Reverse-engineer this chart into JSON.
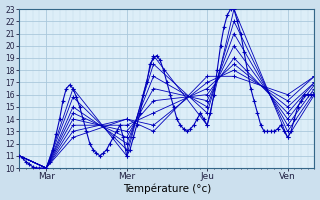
{
  "xlabel": "Température (°c)",
  "bg_color": "#cce0ee",
  "plot_bg_color": "#ddeef8",
  "grid_major_color": "#aac8dc",
  "grid_minor_color": "#c0d8e8",
  "line_color": "#0000bb",
  "marker": "+",
  "ylim": [
    10,
    23
  ],
  "xlim": [
    0,
    264
  ],
  "y_ticks": [
    10,
    11,
    12,
    13,
    14,
    15,
    16,
    17,
    18,
    19,
    20,
    21,
    22,
    23
  ],
  "x_ticks_major": [
    0,
    24,
    96,
    168,
    240
  ],
  "x_tick_labels": [
    "",
    "Mar",
    "Mer",
    "Jeu",
    "Ven"
  ],
  "figsize": [
    3.2,
    2.0
  ],
  "dpi": 100,
  "detailed_series": [
    0,
    11.0,
    3,
    10.8,
    6,
    10.5,
    9,
    10.3,
    12,
    10.1,
    15,
    10.0,
    18,
    10.0,
    21,
    10.0,
    24,
    10.0,
    27,
    10.5,
    30,
    11.5,
    33,
    12.8,
    36,
    14.0,
    39,
    15.5,
    42,
    16.5,
    45,
    16.8,
    48,
    16.5,
    51,
    15.8,
    54,
    15.0,
    57,
    14.0,
    60,
    13.0,
    63,
    12.0,
    66,
    11.5,
    69,
    11.2,
    72,
    11.0,
    75,
    11.2,
    78,
    11.5,
    81,
    12.0,
    84,
    12.5,
    87,
    13.0,
    90,
    13.5,
    93,
    12.5,
    96,
    11.0,
    99,
    11.5,
    102,
    12.5,
    105,
    13.5,
    108,
    14.5,
    111,
    16.0,
    114,
    17.0,
    117,
    18.5,
    120,
    19.0,
    123,
    19.2,
    126,
    18.8,
    129,
    18.0,
    132,
    17.0,
    135,
    16.0,
    138,
    15.0,
    141,
    14.0,
    144,
    13.5,
    147,
    13.2,
    150,
    13.0,
    153,
    13.2,
    156,
    13.5,
    159,
    14.0,
    162,
    14.5,
    165,
    14.0,
    168,
    13.5,
    171,
    14.5,
    174,
    16.0,
    177,
    18.0,
    180,
    20.0,
    183,
    21.5,
    186,
    22.5,
    189,
    23.0,
    192,
    23.0,
    195,
    22.0,
    198,
    21.0,
    201,
    19.5,
    204,
    18.0,
    207,
    16.5,
    210,
    15.5,
    213,
    14.5,
    216,
    13.5,
    219,
    13.0,
    222,
    13.0,
    225,
    13.0,
    228,
    13.0,
    231,
    13.2,
    234,
    13.5,
    237,
    13.0,
    240,
    12.5,
    243,
    13.0,
    246,
    14.0,
    249,
    15.0,
    252,
    15.5,
    255,
    16.0,
    258,
    16.0,
    261,
    16.0,
    264,
    16.0
  ],
  "fan_series": [
    [
      0,
      11.0,
      24,
      10.0,
      48,
      16.5,
      96,
      11.0,
      120,
      19.2,
      168,
      13.5,
      192,
      23.0,
      240,
      12.5,
      264,
      16.0
    ],
    [
      0,
      11.0,
      24,
      10.0,
      48,
      15.8,
      96,
      11.5,
      120,
      18.5,
      168,
      14.5,
      192,
      22.0,
      240,
      13.0,
      264,
      16.2
    ],
    [
      0,
      11.0,
      24,
      10.0,
      48,
      15.0,
      96,
      12.0,
      120,
      17.5,
      168,
      15.0,
      192,
      21.0,
      240,
      13.5,
      264,
      16.5
    ],
    [
      0,
      11.0,
      24,
      10.0,
      48,
      14.5,
      96,
      12.5,
      120,
      16.5,
      168,
      15.5,
      192,
      20.0,
      240,
      14.0,
      264,
      16.8
    ],
    [
      0,
      11.0,
      24,
      10.0,
      48,
      14.0,
      96,
      13.0,
      120,
      15.5,
      168,
      16.0,
      192,
      19.0,
      240,
      14.5,
      264,
      17.0
    ],
    [
      0,
      11.0,
      24,
      10.0,
      48,
      13.5,
      96,
      13.5,
      120,
      14.5,
      168,
      16.5,
      192,
      18.5,
      240,
      15.0,
      264,
      17.0
    ],
    [
      0,
      11.0,
      24,
      10.0,
      48,
      13.0,
      96,
      14.0,
      120,
      13.5,
      168,
      17.0,
      192,
      18.0,
      240,
      15.5,
      264,
      17.5
    ],
    [
      0,
      11.0,
      24,
      10.0,
      48,
      12.5,
      96,
      14.0,
      120,
      13.0,
      168,
      17.5,
      192,
      17.5,
      240,
      16.0,
      264,
      17.5
    ]
  ]
}
